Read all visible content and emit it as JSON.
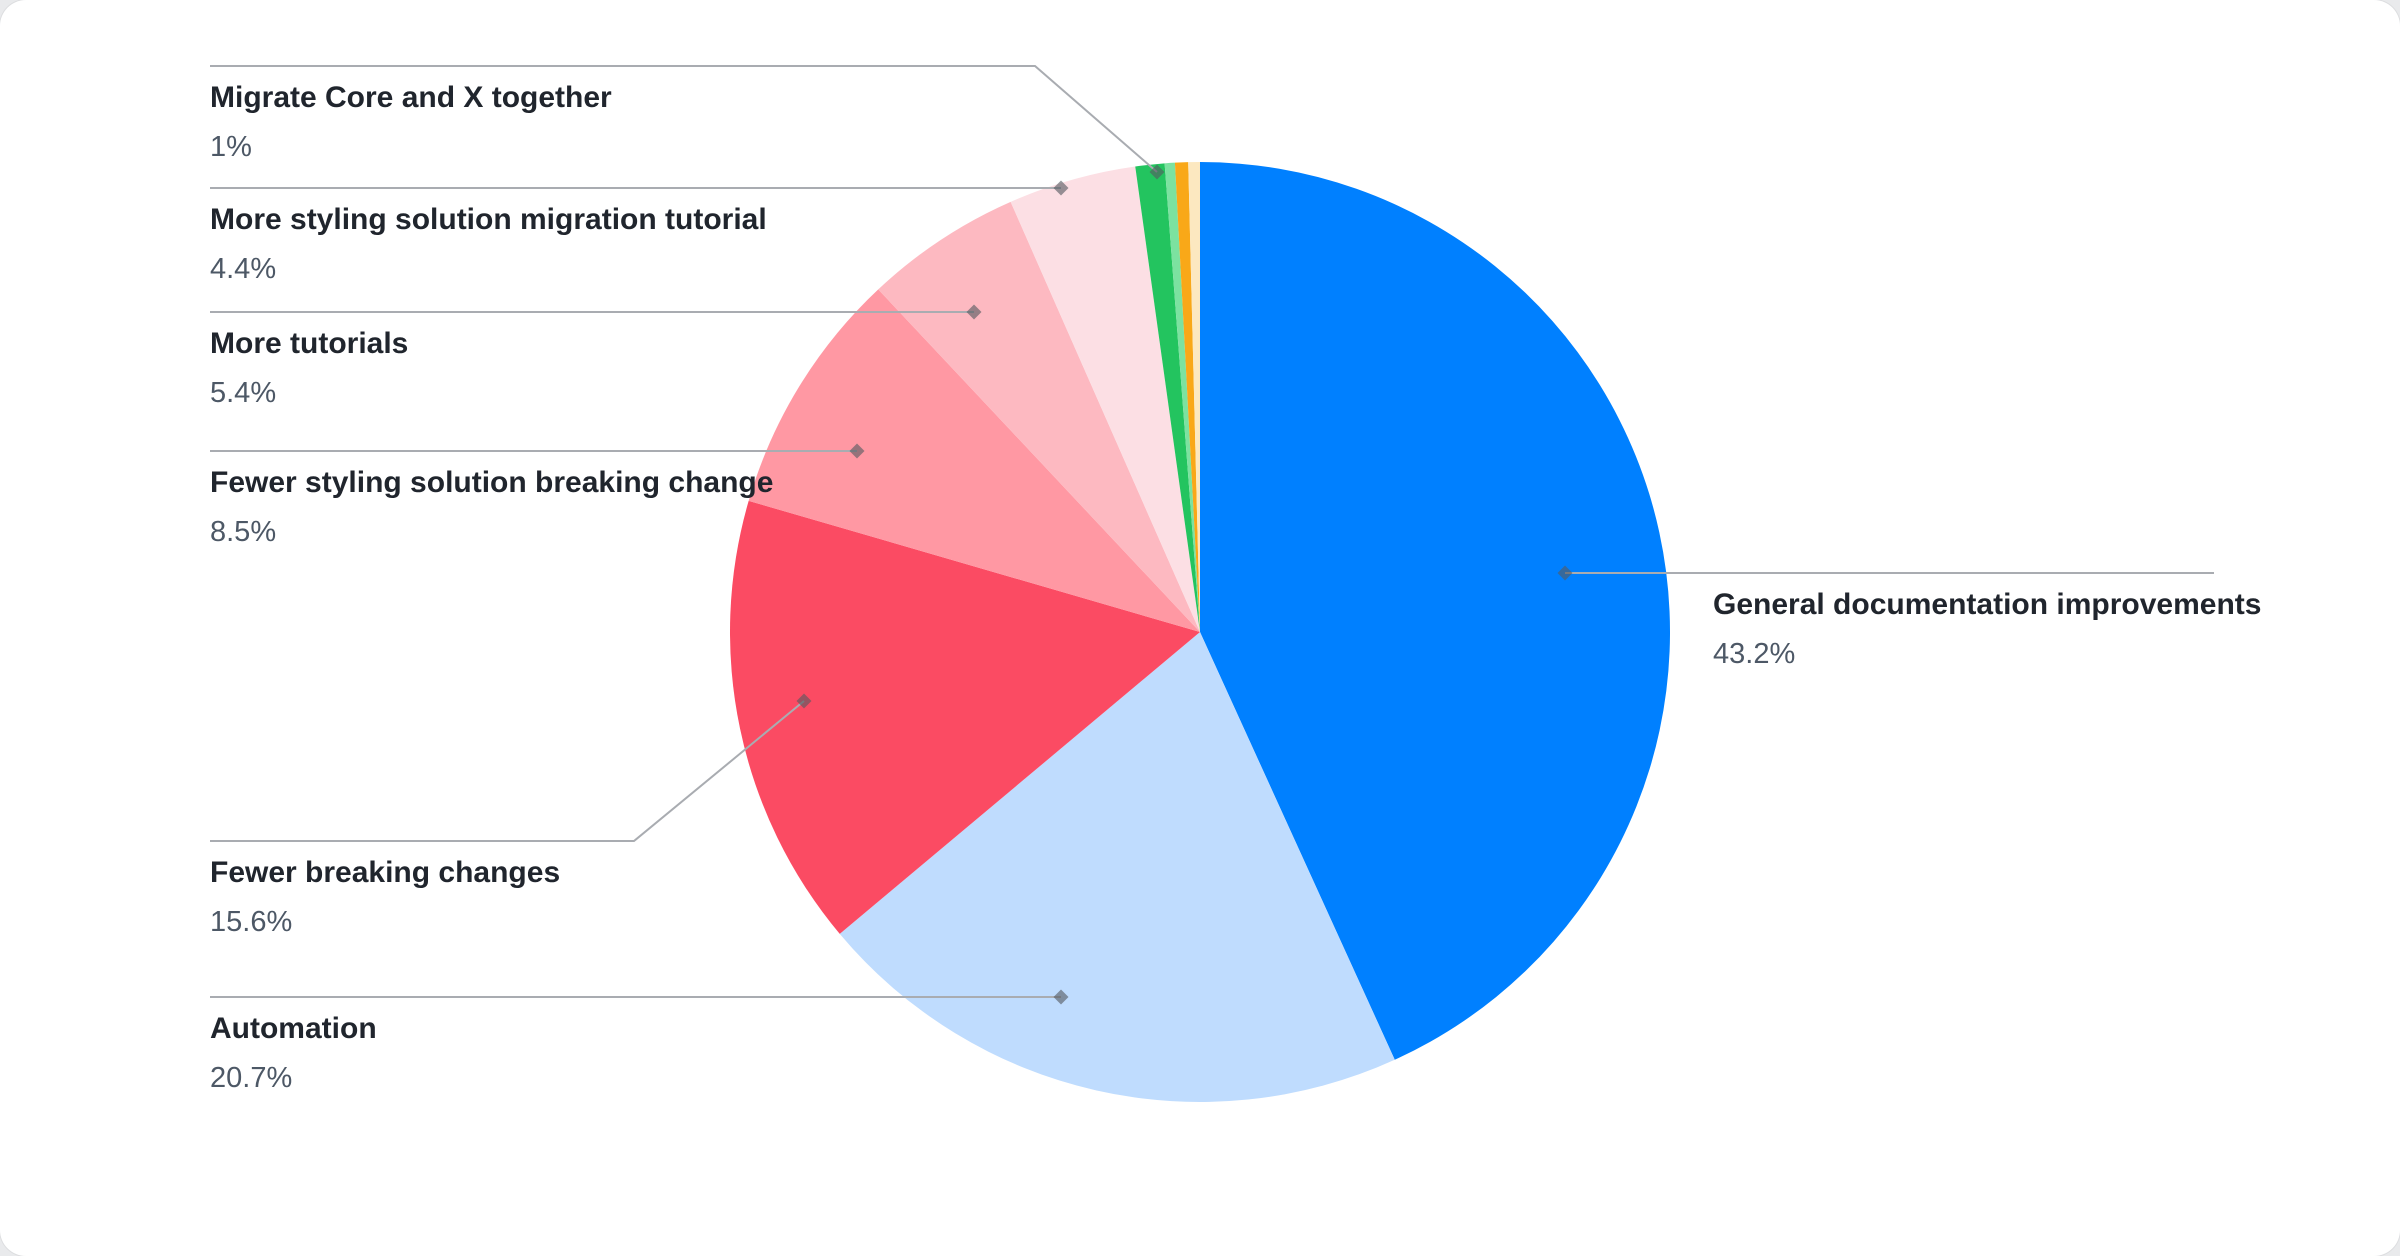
{
  "chart_data": {
    "type": "pie",
    "title": "",
    "legend_position": "callout-labels",
    "start_angle_deg": -90,
    "direction": "clockwise",
    "leader_line_color": "#a9acb1",
    "marker_color": "#565b61",
    "slices": [
      {
        "label": "General documentation improvements",
        "value": 43.2,
        "pct_label": "43.2%",
        "color": "#0080ff"
      },
      {
        "label": "Automation",
        "value": 20.7,
        "pct_label": "20.7%",
        "color": "#bfdcfe"
      },
      {
        "label": "Fewer breaking changes",
        "value": 15.6,
        "pct_label": "15.6%",
        "color": "#fb4b63"
      },
      {
        "label": "Fewer styling solution breaking change",
        "value": 8.5,
        "pct_label": "8.5%",
        "color": "#ff98a3"
      },
      {
        "label": "More tutorials",
        "value": 5.4,
        "pct_label": "5.4%",
        "color": "#fdb9c1"
      },
      {
        "label": "More styling solution migration tutorial",
        "value": 4.4,
        "pct_label": "4.4%",
        "color": "#fcdfe4"
      },
      {
        "label": "Migrate Core and X together",
        "value": 1.0,
        "pct_label": "1%",
        "color": "#23c45f"
      },
      {
        "label": "",
        "value": 0.35,
        "pct_label": "",
        "color": "#7ce2a0"
      },
      {
        "label": "",
        "value": 0.45,
        "pct_label": "",
        "color": "#f9a818"
      },
      {
        "label": "",
        "value": 0.4,
        "pct_label": "",
        "color": "#fce8c0"
      }
    ],
    "text_colors": {
      "label": "#20252d",
      "percent": "#4d5866"
    }
  }
}
